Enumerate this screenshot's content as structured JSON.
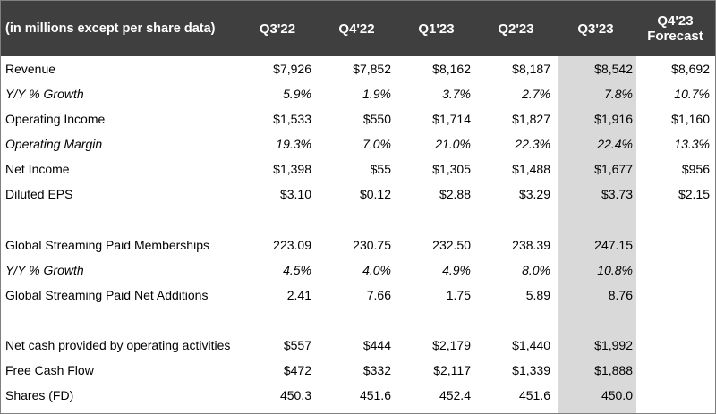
{
  "header": {
    "label": "(in millions except per share data)",
    "columns": [
      "Q3'22",
      "Q4'22",
      "Q1'23",
      "Q2'23",
      "Q3'23"
    ],
    "forecast": {
      "line1": "Q4'23",
      "line2": "Forecast"
    }
  },
  "highlight_column": "Q3'23",
  "rows": [
    {
      "label": "Revenue",
      "italic": false,
      "values": [
        "$7,926",
        "$7,852",
        "$8,162",
        "$8,187",
        "$8,542",
        "$8,692"
      ]
    },
    {
      "label": "Y/Y % Growth",
      "italic": true,
      "values": [
        "5.9%",
        "1.9%",
        "3.7%",
        "2.7%",
        "7.8%",
        "10.7%"
      ]
    },
    {
      "label": "Operating Income",
      "italic": false,
      "values": [
        "$1,533",
        "$550",
        "$1,714",
        "$1,827",
        "$1,916",
        "$1,160"
      ]
    },
    {
      "label": "Operating Margin",
      "italic": true,
      "values": [
        "19.3%",
        "7.0%",
        "21.0%",
        "22.3%",
        "22.4%",
        "13.3%"
      ]
    },
    {
      "label": "Net Income",
      "italic": false,
      "values": [
        "$1,398",
        "$55",
        "$1,305",
        "$1,488",
        "$1,677",
        "$956"
      ]
    },
    {
      "label": "Diluted EPS",
      "italic": false,
      "values": [
        "$3.10",
        "$0.12",
        "$2.88",
        "$3.29",
        "$3.73",
        "$2.15"
      ]
    },
    {
      "label": "Global Streaming Paid Memberships",
      "italic": false,
      "values": [
        "223.09",
        "230.75",
        "232.50",
        "238.39",
        "247.15",
        ""
      ]
    },
    {
      "label": "Y/Y % Growth",
      "italic": true,
      "values": [
        "4.5%",
        "4.0%",
        "4.9%",
        "8.0%",
        "10.8%",
        ""
      ]
    },
    {
      "label": "Global Streaming Paid Net Additions",
      "italic": false,
      "values": [
        "2.41",
        "7.66",
        "1.75",
        "5.89",
        "8.76",
        ""
      ]
    },
    {
      "label": "Net cash provided by operating activities",
      "italic": false,
      "values": [
        "$557",
        "$444",
        "$2,179",
        "$1,440",
        "$1,992",
        ""
      ]
    },
    {
      "label": "Free Cash Flow",
      "italic": false,
      "values": [
        "$472",
        "$332",
        "$2,117",
        "$1,339",
        "$1,888",
        ""
      ]
    },
    {
      "label": "Shares (FD)",
      "italic": false,
      "values": [
        "450.3",
        "451.6",
        "452.4",
        "451.6",
        "450.0",
        ""
      ]
    }
  ]
}
